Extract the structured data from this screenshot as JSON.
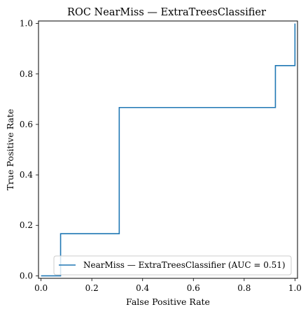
{
  "chart_data": {
    "type": "line",
    "title": "ROC NearMiss — ExtraTreesClassifier",
    "xlabel": "False Positive Rate",
    "ylabel": "True Positive Rate",
    "xlim": [
      -0.01,
      1.01
    ],
    "ylim": [
      -0.01,
      1.01
    ],
    "x_ticks": [
      0.0,
      0.2,
      0.4,
      0.6,
      0.8,
      1.0
    ],
    "y_ticks": [
      0.0,
      0.2,
      0.4,
      0.6,
      0.8,
      1.0
    ],
    "x_tick_labels": [
      "0.0",
      "0.2",
      "0.4",
      "0.6",
      "0.8",
      "1.0"
    ],
    "y_tick_labels": [
      "0.0",
      "0.2",
      "0.4",
      "0.6",
      "0.8",
      "1.0"
    ],
    "grid": false,
    "legend_position": "lower-right",
    "series": [
      {
        "name": "NearMiss — ExtraTreesClassifier (AUC = 0.51)",
        "color": "#1f77b4",
        "x": [
          0.0,
          0.077,
          0.077,
          0.308,
          0.308,
          0.923,
          0.923,
          1.0,
          1.0
        ],
        "y": [
          0.0,
          0.0,
          0.167,
          0.167,
          0.667,
          0.667,
          0.833,
          0.833,
          1.0
        ]
      }
    ]
  }
}
